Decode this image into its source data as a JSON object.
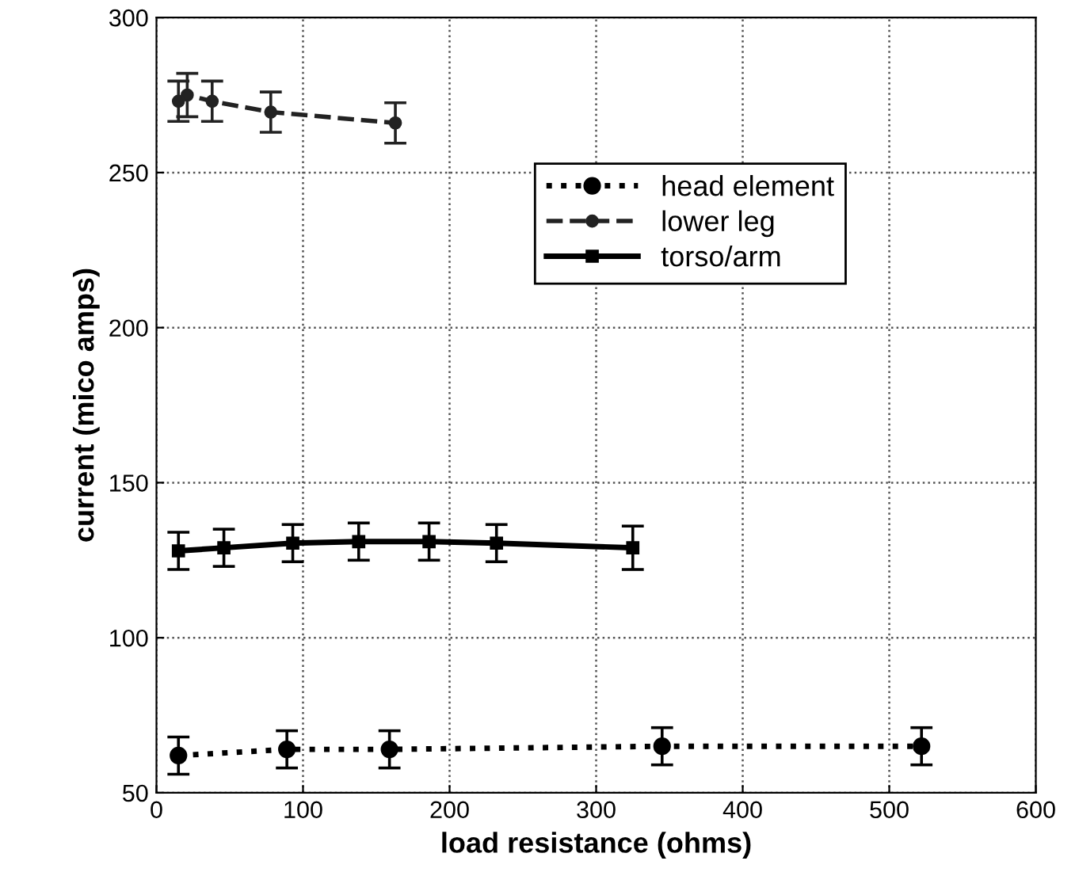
{
  "chart_data": {
    "type": "line",
    "xlabel": "load resistance (ohms)",
    "ylabel": "current (mico amps)",
    "xlim": [
      0,
      600
    ],
    "xticks": [
      0,
      100,
      200,
      300,
      400,
      500,
      600
    ],
    "ylim": [
      50,
      300
    ],
    "yticks": [
      50,
      100,
      150,
      200,
      250,
      300
    ],
    "grid": true,
    "legend": "top right",
    "series": [
      {
        "name": "head element",
        "color": "#000000",
        "marker": "circle",
        "line_style": "dotted",
        "x": [
          15,
          89,
          159,
          345,
          522
        ],
        "values": [
          62,
          64,
          64,
          65,
          65
        ],
        "errors": [
          6,
          6,
          6,
          6,
          6
        ]
      },
      {
        "name": "lower leg",
        "color": "#222222",
        "marker": "circle",
        "line_style": "dashed",
        "x": [
          15,
          21,
          38,
          78,
          163
        ],
        "values": [
          273,
          275,
          273,
          269.5,
          266
        ],
        "errors": [
          6.5,
          7,
          6.5,
          6.5,
          6.5
        ]
      },
      {
        "name": "torso/arm",
        "color": "#000000",
        "marker": "square",
        "line_style": "solid",
        "x": [
          15,
          46,
          93,
          138,
          186,
          232,
          325
        ],
        "values": [
          128,
          129,
          130.5,
          131,
          131,
          130.5,
          129
        ],
        "errors": [
          6,
          6,
          6,
          6,
          6,
          6,
          7
        ]
      }
    ]
  }
}
